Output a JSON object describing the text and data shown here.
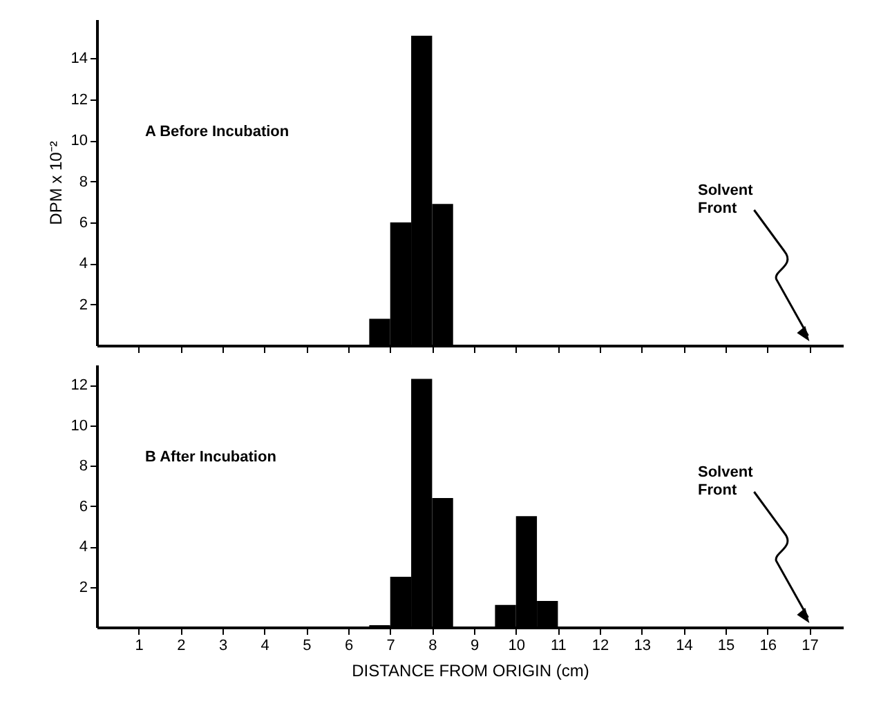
{
  "chart_data": [
    {
      "type": "histogram",
      "bins": [
        6.5,
        7,
        7.5,
        8,
        8.5
      ],
      "values": [
        1.3,
        6.0,
        15.1,
        6.9
      ],
      "color": "#000000",
      "xlim": [
        0,
        17.8
      ],
      "xticks": [
        1,
        2,
        3,
        4,
        5,
        6,
        7,
        8,
        9,
        10,
        11,
        12,
        13,
        14,
        15,
        16,
        17
      ],
      "ylim": [
        0,
        15.9
      ],
      "yticks": [
        2,
        4,
        6,
        8,
        10,
        12,
        14
      ],
      "ylabel": "DPM x 10⁻²",
      "tick_labels": "y",
      "grid": false,
      "annotations": [
        "A    Before Incubation",
        "Solvent Front"
      ]
    },
    {
      "type": "histogram",
      "bins": [
        6.5,
        7,
        7.5,
        8,
        8.5,
        9,
        9.5,
        10,
        10.5,
        11
      ],
      "values": [
        0.1,
        2.5,
        12.3,
        6.4,
        0,
        0,
        1.1,
        5.5,
        1.3
      ],
      "color": "#000000",
      "xlim": [
        0,
        17.8
      ],
      "xticks": [
        1,
        2,
        3,
        4,
        5,
        6,
        7,
        8,
        9,
        10,
        11,
        12,
        13,
        14,
        15,
        16,
        17
      ],
      "ylim": [
        0,
        13
      ],
      "yticks": [
        2,
        4,
        6,
        8,
        10,
        12
      ],
      "xlabel": "DISTANCE FROM ORIGIN (cm)",
      "grid": false,
      "annotations": [
        "B    After Incubation",
        "Solvent Front"
      ]
    }
  ]
}
